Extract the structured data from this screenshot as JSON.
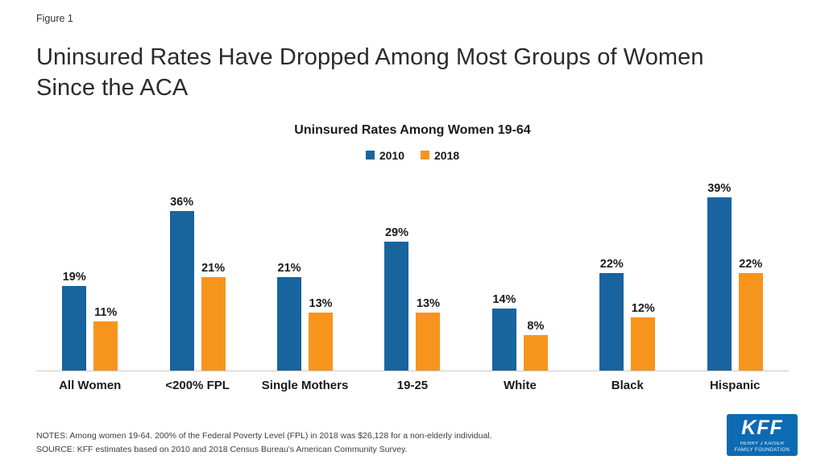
{
  "figure_label": "Figure 1",
  "title": "Uninsured Rates Have Dropped Among Most Groups of Women Since the ACA",
  "notes": "NOTES: Among women 19-64. 200% of the Federal Poverty Level (FPL) in 2018 was $26,128 for a non-elderly individual.",
  "source": "SOURCE: KFF estimates based on 2010 and 2018 Census Bureau's American Community Survey.",
  "logo": {
    "text": "KFF",
    "line1": "HENRY J KAISER",
    "line2": "FAMILY FOUNDATION",
    "bg_color": "#0c6bb3"
  },
  "colors": {
    "series_2010": "#17649e",
    "series_2018": "#f7941e",
    "baseline": "#c9c9c9"
  },
  "chart_data": {
    "type": "bar",
    "title": "Uninsured Rates Among Women 19-64",
    "categories": [
      "All Women",
      "<200% FPL",
      "Single Mothers",
      "19-25",
      "White",
      "Black",
      "Hispanic"
    ],
    "series": [
      {
        "name": "2010",
        "color": "#17649e",
        "values": [
          19,
          36,
          21,
          29,
          14,
          22,
          39
        ]
      },
      {
        "name": "2018",
        "color": "#f7941e",
        "values": [
          11,
          21,
          13,
          13,
          8,
          12,
          22
        ]
      }
    ],
    "value_suffix": "%",
    "ylim": [
      0,
      40
    ],
    "grid": false,
    "legend_position": "top"
  }
}
